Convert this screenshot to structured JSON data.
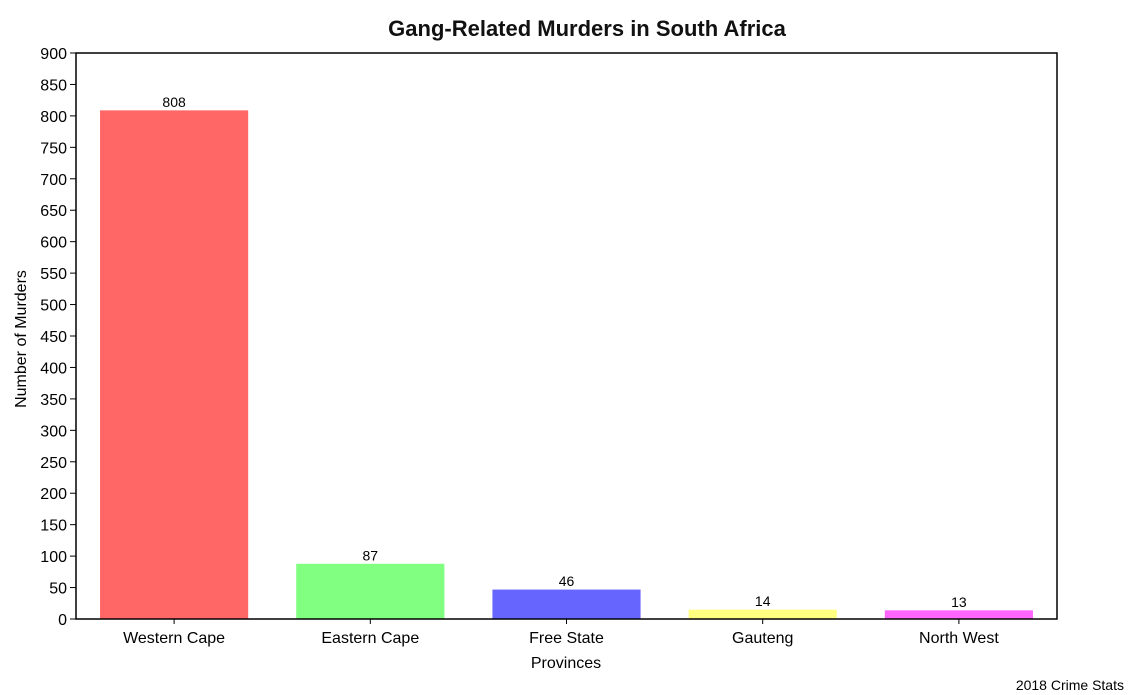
{
  "chart_data": {
    "type": "bar",
    "title": "Gang-Related Murders in South Africa",
    "xlabel": "Provinces",
    "ylabel": "Number of Murders",
    "categories": [
      "Western Cape",
      "Eastern Cape",
      "Free State",
      "Gauteng",
      "North West"
    ],
    "values": [
      808,
      87,
      46,
      14,
      13
    ],
    "data_labels": [
      "808",
      "87",
      "46",
      "14",
      "13"
    ],
    "colors": [
      "#ff6666",
      "#80ff80",
      "#6666ff",
      "#ffff80",
      "#ff66ff"
    ],
    "ylim": [
      0,
      900
    ],
    "yticks": [
      0,
      50,
      100,
      150,
      200,
      250,
      300,
      350,
      400,
      450,
      500,
      550,
      600,
      650,
      700,
      750,
      800,
      850,
      900
    ],
    "grid": false,
    "legend": "none"
  },
  "caption": "2018 Crime Stats"
}
